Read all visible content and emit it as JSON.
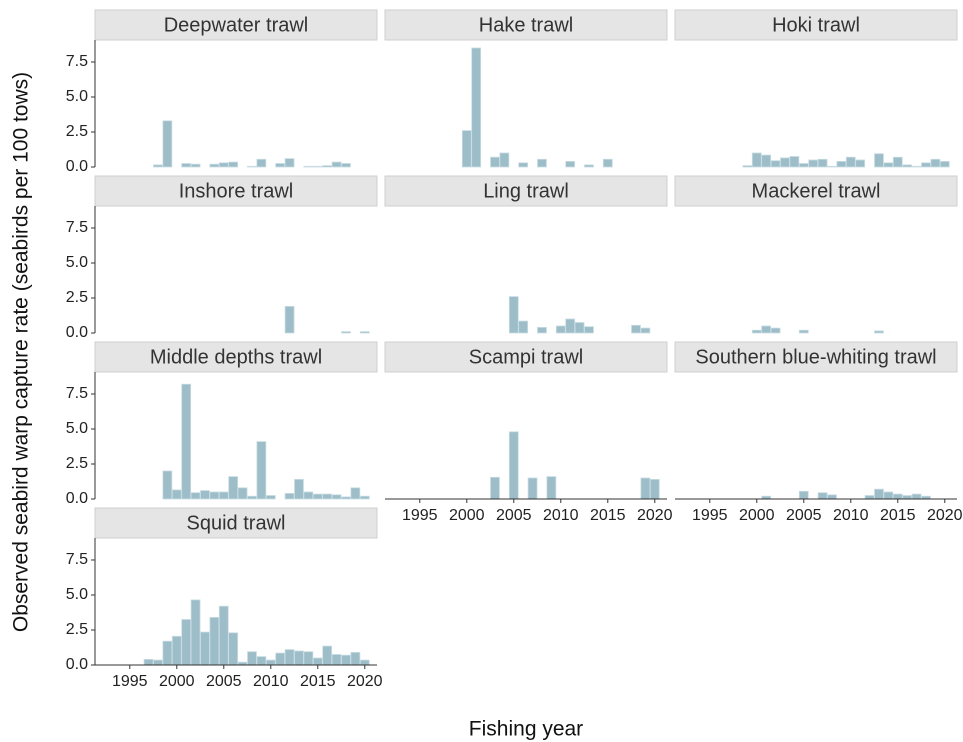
{
  "y_label": "Observed seabird warp capture rate (seabirds per 100 tows)",
  "x_label": "Fishing year",
  "chart_data": [
    {
      "type": "bar",
      "title": "Deepwater trawl",
      "color": "#9dbdc9",
      "x": [
        1998,
        1999,
        2001,
        2002,
        2004,
        2005,
        2006,
        2008,
        2009,
        2011,
        2012,
        2014,
        2015,
        2016,
        2017,
        2018
      ],
      "values": [
        0.15,
        3.3,
        0.25,
        0.2,
        0.2,
        0.3,
        0.35,
        0.05,
        0.55,
        0.25,
        0.6,
        0.05,
        0.05,
        0.1,
        0.35,
        0.25
      ],
      "xlim": [
        1991.3,
        2021.3
      ],
      "ylim": [
        0,
        9.07
      ],
      "yticks": [
        {
          "value": 0,
          "label": "0.0"
        },
        2.5,
        {
          "value": 5,
          "label": "5.0"
        },
        7.5
      ]
    },
    {
      "type": "bar",
      "title": "Hake trawl",
      "color": "#9dbdc9",
      "x": [
        2000,
        2001,
        2003,
        2004,
        2006,
        2008,
        2011,
        2013,
        2015
      ],
      "values": [
        2.6,
        8.5,
        0.7,
        1.0,
        0.3,
        0.55,
        0.4,
        0.15,
        0.55
      ],
      "xlim": [
        1991.3,
        2021.3
      ],
      "ylim": [
        0,
        9.07
      ]
    },
    {
      "type": "bar",
      "title": "Hoki trawl",
      "color": "#9dbdc9",
      "x": [
        1999,
        2000,
        2001,
        2002,
        2003,
        2004,
        2005,
        2006,
        2007,
        2008,
        2009,
        2010,
        2011,
        2013,
        2014,
        2015,
        2016,
        2017,
        2018,
        2019,
        2020
      ],
      "values": [
        0.1,
        1.0,
        0.85,
        0.45,
        0.65,
        0.75,
        0.25,
        0.5,
        0.55,
        0.05,
        0.4,
        0.7,
        0.5,
        0.95,
        0.3,
        0.7,
        0.15,
        0.05,
        0.3,
        0.55,
        0.4
      ],
      "xlim": [
        1991.3,
        2021.3
      ],
      "ylim": [
        0,
        9.07
      ]
    },
    {
      "type": "bar",
      "title": "Inshore trawl",
      "color": "#9dbdc9",
      "x": [
        2012,
        2018,
        2020
      ],
      "values": [
        1.9,
        0.1,
        0.1
      ],
      "xlim": [
        1991.3,
        2021.3
      ],
      "ylim": [
        0,
        9.07
      ],
      "yticks": [
        {
          "value": 0,
          "label": "0.0"
        },
        2.5,
        {
          "value": 5,
          "label": "5.0"
        },
        7.5
      ]
    },
    {
      "type": "bar",
      "title": "Ling trawl",
      "color": "#9dbdc9",
      "x": [
        2005,
        2006,
        2008,
        2010,
        2011,
        2012,
        2013,
        2018,
        2019
      ],
      "values": [
        2.6,
        0.85,
        0.4,
        0.5,
        1.0,
        0.75,
        0.45,
        0.55,
        0.35
      ],
      "xlim": [
        1991.3,
        2021.3
      ],
      "ylim": [
        0,
        9.07
      ]
    },
    {
      "type": "bar",
      "title": "Mackerel trawl",
      "color": "#9dbdc9",
      "x": [
        2000,
        2001,
        2002,
        2005,
        2013
      ],
      "values": [
        0.2,
        0.5,
        0.35,
        0.2,
        0.15
      ],
      "xlim": [
        1991.3,
        2021.3
      ],
      "ylim": [
        0,
        9.07
      ]
    },
    {
      "type": "bar",
      "title": "Middle depths trawl",
      "color": "#9dbdc9",
      "x": [
        1999,
        2000,
        2001,
        2002,
        2003,
        2004,
        2005,
        2006,
        2007,
        2008,
        2009,
        2010,
        2012,
        2013,
        2014,
        2015,
        2016,
        2017,
        2018,
        2019,
        2020
      ],
      "values": [
        2.0,
        0.65,
        8.2,
        0.45,
        0.6,
        0.5,
        0.5,
        1.6,
        0.8,
        0.2,
        4.1,
        0.25,
        0.4,
        1.4,
        0.5,
        0.35,
        0.35,
        0.3,
        0.15,
        0.8,
        0.2
      ],
      "xlim": [
        1991.3,
        2021.3
      ],
      "ylim": [
        0,
        9.07
      ],
      "yticks": [
        {
          "value": 0,
          "label": "0.0"
        },
        2.5,
        {
          "value": 5,
          "label": "5.0"
        },
        7.5
      ]
    },
    {
      "type": "bar",
      "title": "Scampi trawl",
      "color": "#9dbdc9",
      "x": [
        2003,
        2005,
        2007,
        2009,
        2019,
        2020
      ],
      "values": [
        1.55,
        4.8,
        1.5,
        1.6,
        1.5,
        1.4
      ],
      "xlim": [
        1991.3,
        2021.3
      ],
      "ylim": [
        0,
        9.07
      ],
      "xticks": [
        1995,
        2000,
        2005,
        2010,
        2015,
        2020
      ]
    },
    {
      "type": "bar",
      "title": "Southern blue-whiting trawl",
      "color": "#9dbdc9",
      "x": [
        2001,
        2005,
        2007,
        2008,
        2012,
        2013,
        2014,
        2015,
        2016,
        2017,
        2018
      ],
      "values": [
        0.2,
        0.55,
        0.45,
        0.3,
        0.25,
        0.7,
        0.5,
        0.35,
        0.25,
        0.35,
        0.2
      ],
      "xlim": [
        1991.3,
        2021.3
      ],
      "ylim": [
        0,
        9.07
      ],
      "xticks": [
        1995,
        2000,
        2005,
        2010,
        2015,
        2020
      ]
    },
    {
      "type": "bar",
      "title": "Squid trawl",
      "color": "#9dbdc9",
      "x": [
        1997,
        1998,
        1999,
        2000,
        2001,
        2002,
        2003,
        2004,
        2005,
        2006,
        2007,
        2008,
        2009,
        2010,
        2011,
        2012,
        2013,
        2014,
        2015,
        2016,
        2017,
        2018,
        2019,
        2020
      ],
      "values": [
        0.4,
        0.35,
        1.7,
        2.05,
        3.25,
        4.65,
        2.35,
        3.4,
        4.2,
        2.3,
        0.2,
        0.95,
        0.6,
        0.35,
        0.85,
        1.1,
        1.0,
        0.95,
        0.5,
        1.35,
        0.75,
        0.7,
        0.9,
        0.35
      ],
      "xlim": [
        1991.3,
        2021.3
      ],
      "ylim": [
        0,
        9.07
      ],
      "yticks": [
        {
          "value": 0,
          "label": "0.0"
        },
        2.5,
        {
          "value": 5,
          "label": "5.0"
        },
        7.5
      ],
      "xticks": [
        1995,
        2000,
        2005,
        2010,
        2015,
        2020
      ]
    }
  ]
}
